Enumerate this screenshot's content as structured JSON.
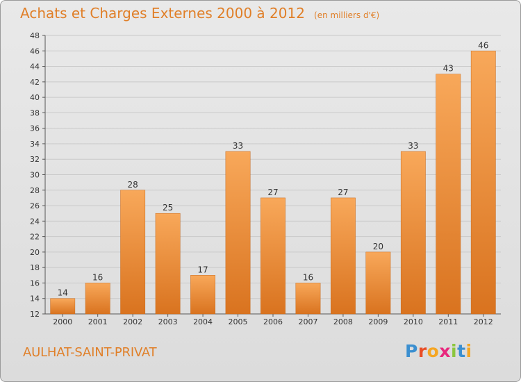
{
  "header": {
    "title": "Achats et Charges Externes 2000 à 2012",
    "subtitle": "(en milliers d'€)"
  },
  "footer": {
    "location": "AULHAT-SAINT-PRIVAT"
  },
  "logo": {
    "text": "Proxiti",
    "letters": [
      {
        "ch": "P",
        "color": "#3b8fd0"
      },
      {
        "ch": "r",
        "color": "#e94e26"
      },
      {
        "ch": "o",
        "color": "#f5a623"
      },
      {
        "ch": "x",
        "color": "#e8287d"
      },
      {
        "ch": "i",
        "color": "#8cc63e"
      },
      {
        "ch": "t",
        "color": "#3b8fd0"
      },
      {
        "ch": "i",
        "color": "#f5a623"
      }
    ]
  },
  "colors": {
    "accent": "#e07f28",
    "bar_light": "#f8a85a",
    "bar_dark": "#d9731f"
  },
  "chart_data": {
    "type": "bar",
    "title": "Achats et Charges Externes 2000 à 2012",
    "subtitle": "(en milliers d'€)",
    "categories": [
      "2000",
      "2001",
      "2002",
      "2003",
      "2004",
      "2005",
      "2006",
      "2007",
      "2008",
      "2009",
      "2010",
      "2011",
      "2012"
    ],
    "values": [
      14,
      16,
      28,
      25,
      17,
      33,
      27,
      16,
      27,
      20,
      33,
      43,
      46
    ],
    "ylim": [
      12,
      48
    ],
    "yticks": [
      12,
      14,
      16,
      18,
      20,
      22,
      24,
      26,
      28,
      30,
      32,
      34,
      36,
      38,
      40,
      42,
      44,
      46,
      48
    ],
    "grid": true,
    "legend": false
  }
}
